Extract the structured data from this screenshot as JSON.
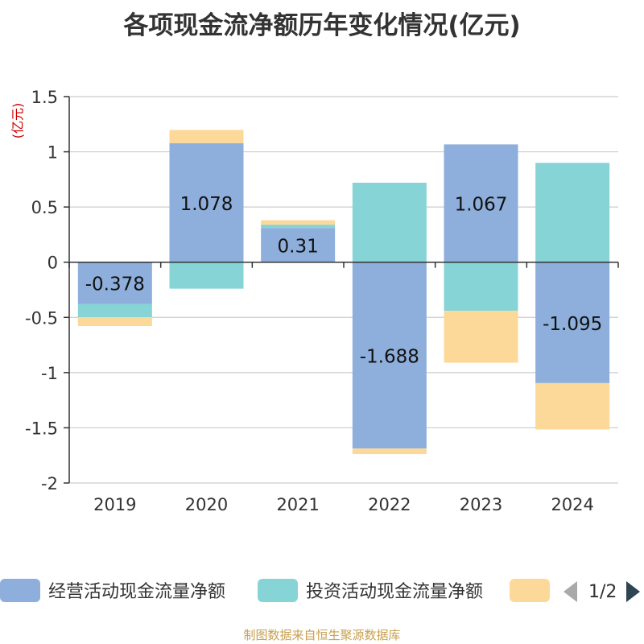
{
  "title": "各项现金流净额历年变化情况(亿元)",
  "unit_label": "(亿元)",
  "source": "制图数据来自恒生聚源数据库",
  "legend": {
    "items": [
      {
        "label": "经营活动现金流量净额",
        "color": "#8eaedb"
      },
      {
        "label": "投资活动现金流量净额",
        "color": "#86d4d6"
      },
      {
        "label": "",
        "color": "#fcd899"
      }
    ],
    "page": "1/2"
  },
  "chart_data": {
    "type": "bar",
    "stacked": true,
    "categories": [
      "2019",
      "2020",
      "2021",
      "2022",
      "2023",
      "2024"
    ],
    "ylim": [
      -2,
      1.5
    ],
    "yticks": [
      -2,
      -1.5,
      -1,
      -0.5,
      0,
      0.5,
      1,
      1.5
    ],
    "ytick_labels": [
      "-2",
      "-1.5",
      "-1",
      "-0.5",
      "0",
      "0.5",
      "1",
      "1.5"
    ],
    "grid": true,
    "legend_position": "bottom",
    "series": [
      {
        "name": "经营活动现金流量净额",
        "color": "#8eaedb",
        "values": [
          -0.378,
          1.078,
          0.31,
          -1.688,
          1.067,
          -1.095
        ],
        "labels": [
          "-0.378",
          "1.078",
          "0.31",
          "-1.688",
          "1.067",
          "-1.095"
        ]
      },
      {
        "name": "投资活动现金流量净额",
        "color": "#86d4d6",
        "values": [
          -0.12,
          -0.24,
          0.03,
          0.72,
          -0.44,
          0.9
        ]
      },
      {
        "name": "",
        "color": "#fcd899",
        "values": [
          -0.08,
          0.12,
          0.04,
          -0.05,
          -0.47,
          -0.42
        ]
      }
    ]
  }
}
